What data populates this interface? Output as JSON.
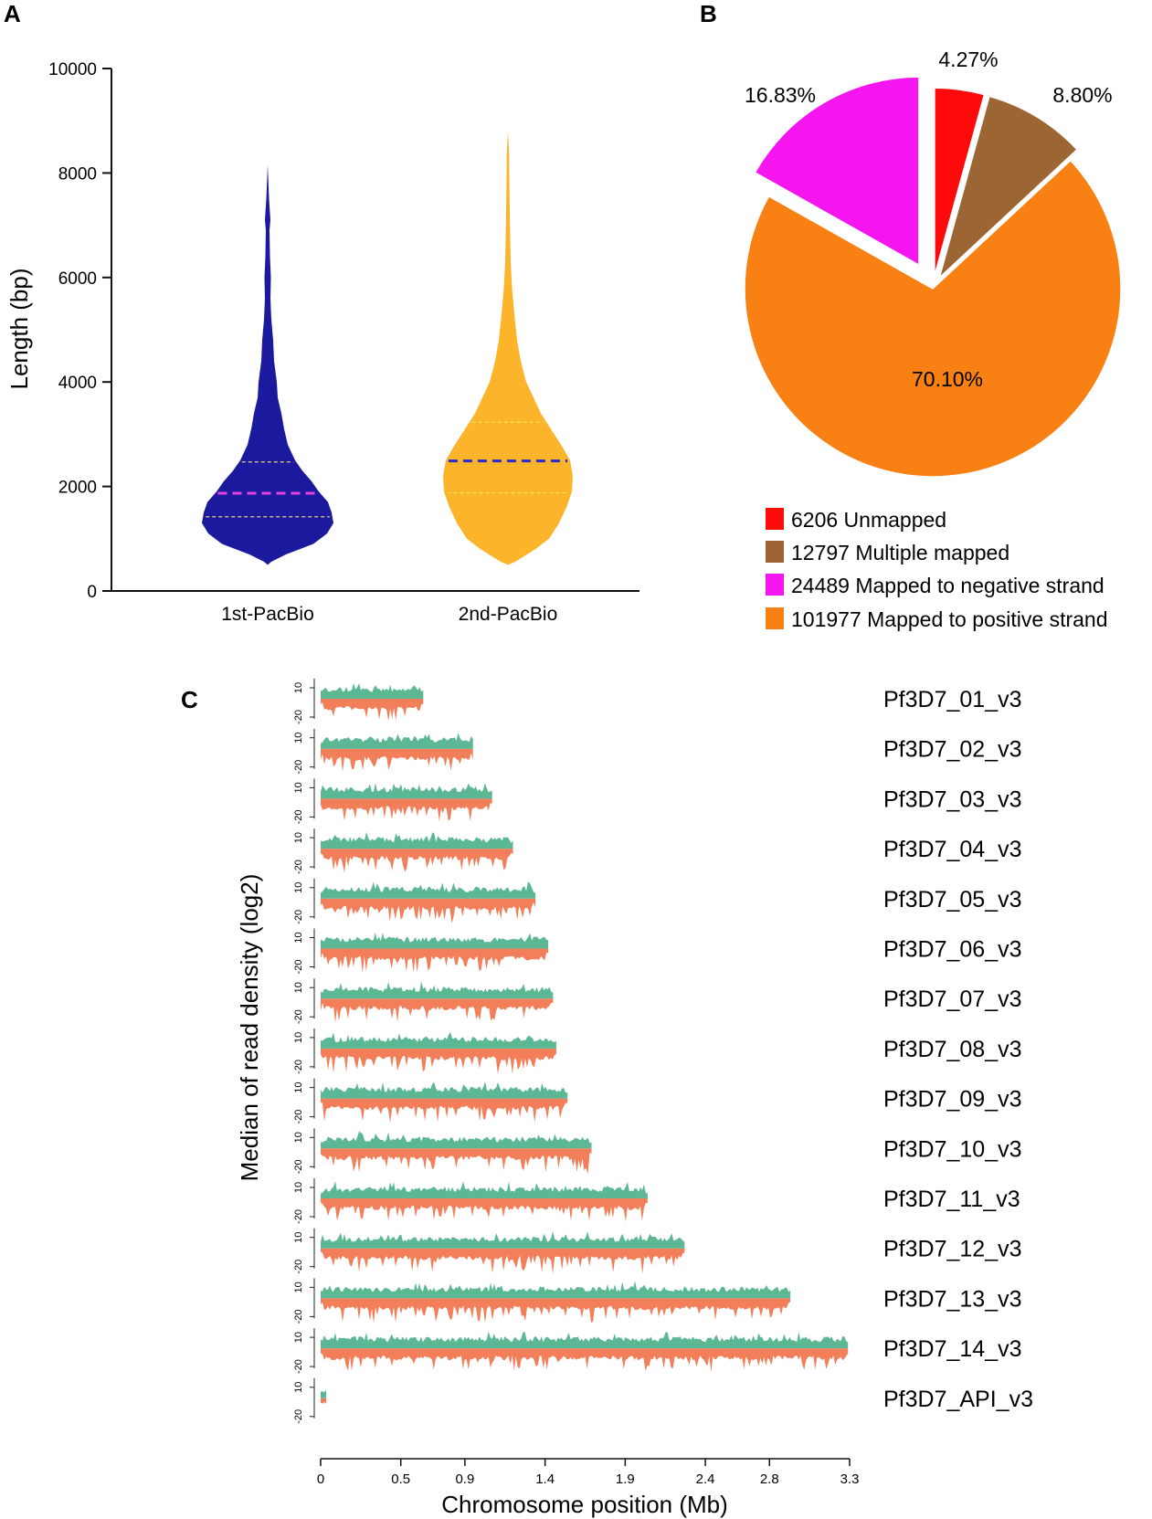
{
  "chart_data": [
    {
      "panel": "A",
      "type": "violin",
      "ylabel": "Length (bp)",
      "ylim": [
        0,
        10000
      ],
      "yticks": [
        "0",
        "2000",
        "4000",
        "6000",
        "8000",
        "10000"
      ],
      "categories": [
        "1st-PacBio",
        "2nd-PacBio"
      ],
      "series": [
        {
          "name": "1st-PacBio",
          "color": "#1b1a9e",
          "min": 500,
          "max": 8150,
          "q1": 1420,
          "median": 1870,
          "q3": 2470,
          "median_color": "#e040e0",
          "quartile_color": "#e8d27a"
        },
        {
          "name": "2nd-PacBio",
          "color": "#fcb42a",
          "min": 500,
          "max": 8800,
          "q1": 1880,
          "median": 2490,
          "q3": 3230,
          "median_color": "#2b2bc8",
          "quartile_color": "#f5e84a"
        }
      ]
    },
    {
      "panel": "B",
      "type": "pie",
      "slices": [
        {
          "label": "Unmapped",
          "count": "6206",
          "value": 4.27,
          "pct": "4.27%",
          "color": "#ff0a0a"
        },
        {
          "label": "Multiple mapped",
          "count": "12797",
          "value": 8.8,
          "pct": "8.80%",
          "color": "#9c6634"
        },
        {
          "label": "Mapped to positive strand",
          "count": "101977",
          "value": 70.1,
          "pct": "70.10%",
          "color": "#f98012"
        },
        {
          "label": "Mapped to negative strand",
          "count": "24489",
          "value": 16.83,
          "pct": "16.83%",
          "color": "#f515ee"
        }
      ],
      "legend": [
        {
          "text": "6206 Unmapped",
          "color": "#ff0a0a"
        },
        {
          "text": "12797 Multiple mapped",
          "color": "#9c6634"
        },
        {
          "text": "24489 Mapped to negative strand",
          "color": "#f515ee"
        },
        {
          "text": "101977 Mapped to positive strand",
          "color": "#f98012"
        }
      ]
    },
    {
      "panel": "C",
      "type": "area",
      "ylabel": "Median of read density (log2)",
      "xlabel": "Chromosome position (Mb)",
      "xlim": [
        0,
        3.3
      ],
      "xticks": [
        "0",
        "0.5",
        "0.9",
        "1.4",
        "1.9",
        "2.4",
        "2.8",
        "3.3"
      ],
      "track_ticks": [
        "10",
        "-20"
      ],
      "positive_color": "#5cb894",
      "negative_color": "#f27f5a",
      "chromosomes": [
        {
          "name": "Pf3D7_01_v3",
          "length": 0.64
        },
        {
          "name": "Pf3D7_02_v3",
          "length": 0.95
        },
        {
          "name": "Pf3D7_03_v3",
          "length": 1.07
        },
        {
          "name": "Pf3D7_04_v3",
          "length": 1.2
        },
        {
          "name": "Pf3D7_05_v3",
          "length": 1.34
        },
        {
          "name": "Pf3D7_06_v3",
          "length": 1.42
        },
        {
          "name": "Pf3D7_07_v3",
          "length": 1.45
        },
        {
          "name": "Pf3D7_08_v3",
          "length": 1.47
        },
        {
          "name": "Pf3D7_09_v3",
          "length": 1.54
        },
        {
          "name": "Pf3D7_10_v3",
          "length": 1.69
        },
        {
          "name": "Pf3D7_11_v3",
          "length": 2.04
        },
        {
          "name": "Pf3D7_12_v3",
          "length": 2.27
        },
        {
          "name": "Pf3D7_13_v3",
          "length": 2.93
        },
        {
          "name": "Pf3D7_14_v3",
          "length": 3.29
        },
        {
          "name": "Pf3D7_API_v3",
          "length": 0.035
        }
      ]
    }
  ]
}
